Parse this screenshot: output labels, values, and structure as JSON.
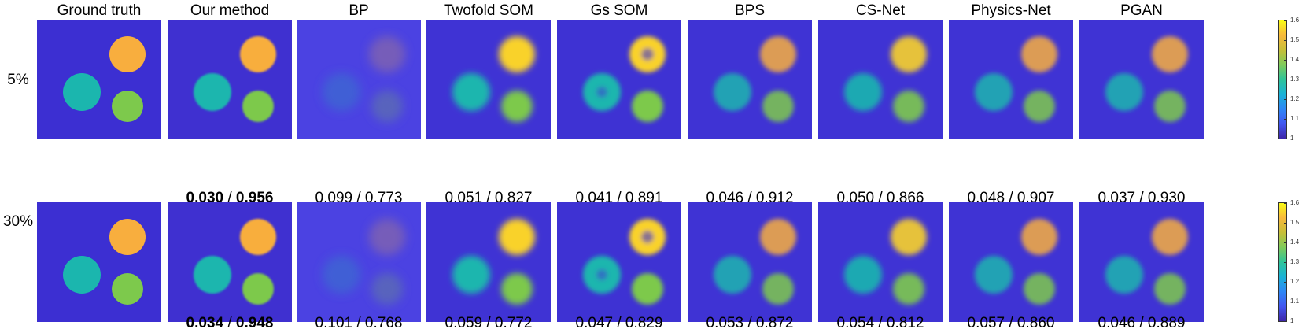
{
  "columns": [
    "Ground truth",
    "Our method",
    "BP",
    "Twofold SOM",
    "Gs SOM",
    "BPS",
    "CS-Net",
    "Physics-Net",
    "PGAN"
  ],
  "rows": [
    {
      "label": "5%",
      "metrics": [
        null,
        {
          "a": "0.030",
          "b": "0.956",
          "best": true
        },
        {
          "a": "0.099",
          "b": "0.773"
        },
        {
          "a": "0.051",
          "b": "0.827"
        },
        {
          "a": "0.041",
          "b": "0.891"
        },
        {
          "a": "0.046",
          "b": "0.912"
        },
        {
          "a": "0.050",
          "b": "0.866"
        },
        {
          "a": "0.048",
          "b": "0.907"
        },
        {
          "a": "0.037",
          "b": "0.930"
        }
      ]
    },
    {
      "label": "30%",
      "metrics": [
        null,
        {
          "a": "0.034",
          "b": "0.948",
          "best": true
        },
        {
          "a": "0.101",
          "b": "0.768"
        },
        {
          "a": "0.059",
          "b": "0.772"
        },
        {
          "a": "0.047",
          "b": "0.829"
        },
        {
          "a": "0.053",
          "b": "0.872"
        },
        {
          "a": "0.054",
          "b": "0.812"
        },
        {
          "a": "0.057",
          "b": "0.860"
        },
        {
          "a": "0.046",
          "b": "0.889"
        }
      ]
    }
  ],
  "metric_separator": "/",
  "colorbar": {
    "ticks": [
      "1.6",
      "1.5",
      "1.4",
      "1.3",
      "1.2",
      "1.1",
      "1"
    ],
    "tick_values": [
      1.6,
      1.5,
      1.4,
      1.3,
      1.2,
      1.1,
      1.0
    ],
    "colors": [
      "#3e26a8",
      "#4256f0",
      "#2e87f6",
      "#1ab2d6",
      "#2ec49a",
      "#7fcb5b",
      "#c7bf39",
      "#f8b93c",
      "#f9fb15"
    ]
  },
  "panel_colors": {
    "background": "#3c2fd2",
    "orange_disk": "#f8ae3e",
    "teal_disk": "#1bb6ae",
    "green_disk": "#7dc94c"
  }
}
